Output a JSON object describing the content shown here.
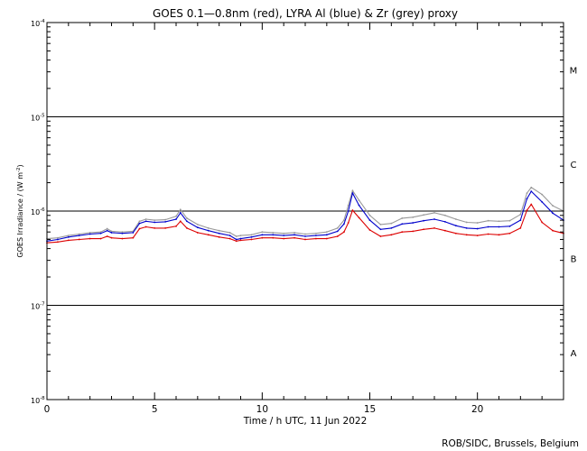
{
  "chart_data": {
    "type": "line",
    "title": "GOES 0.1—0.8nm (red), LYRA Al (blue) & Zr (grey) proxy",
    "xlabel": "Time / h UTC, 11 Jun 2022",
    "ylabel_main": "GOES Irradiance / (W m",
    "ylabel_exp": "-2",
    "ylabel_close": ")",
    "xlim": [
      0,
      24
    ],
    "ylim_log10": [
      -8,
      -4
    ],
    "y_scale": "log",
    "xticks": [
      {
        "value": 0,
        "label": "0"
      },
      {
        "value": 5,
        "label": "5"
      },
      {
        "value": 10,
        "label": "10"
      },
      {
        "value": 15,
        "label": "15"
      },
      {
        "value": 20,
        "label": "20"
      }
    ],
    "yticks": [
      {
        "exp": -4,
        "base": "10",
        "sup": "-4"
      },
      {
        "exp": -5,
        "base": "10",
        "sup": "-5"
      },
      {
        "exp": -6,
        "base": "10",
        "sup": "-6"
      },
      {
        "exp": -7,
        "base": "10",
        "sup": "-7"
      },
      {
        "exp": -8,
        "base": "10",
        "sup": "-8"
      }
    ],
    "class_lines_log10": [
      -5,
      -6,
      -7
    ],
    "flare_classes": [
      {
        "label": "M",
        "log_center": -4.5
      },
      {
        "label": "C",
        "log_center": -5.5
      },
      {
        "label": "B",
        "log_center": -6.5
      },
      {
        "label": "A",
        "log_center": -7.5
      }
    ],
    "series": [
      {
        "name": "LYRA Zr proxy",
        "color": "#999999",
        "x": [
          0,
          0.5,
          1,
          1.5,
          2,
          2.5,
          2.8,
          3,
          3.5,
          4,
          4.3,
          4.6,
          5,
          5.5,
          6,
          6.2,
          6.5,
          7,
          7.5,
          8,
          8.5,
          8.8,
          9,
          9.5,
          10,
          10.5,
          11,
          11.5,
          12,
          12.5,
          13,
          13.5,
          13.8,
          14,
          14.2,
          14.5,
          15,
          15.5,
          16,
          16.5,
          17,
          17.5,
          18,
          18.5,
          19,
          19.5,
          20,
          20.5,
          21,
          21.5,
          22,
          22.3,
          22.5,
          23,
          23.5,
          24
        ],
        "values": [
          5.1e-07,
          5.2e-07,
          5.5e-07,
          5.7e-07,
          5.9e-07,
          6e-07,
          6.5e-07,
          6.1e-07,
          6e-07,
          6.1e-07,
          7.8e-07,
          8.2e-07,
          8e-07,
          8.1e-07,
          8.8e-07,
          1.04e-06,
          8.4e-07,
          7.2e-07,
          6.6e-07,
          6.2e-07,
          5.9e-07,
          5.4e-07,
          5.5e-07,
          5.6e-07,
          6e-07,
          5.9e-07,
          5.8e-07,
          5.9e-07,
          5.7e-07,
          5.8e-07,
          6e-07,
          6.6e-07,
          8e-07,
          1.15e-06,
          1.65e-06,
          1.3e-06,
          9e-07,
          7.2e-07,
          7.4e-07,
          8.4e-07,
          8.6e-07,
          9.1e-07,
          9.6e-07,
          9e-07,
          8.2e-07,
          7.6e-07,
          7.5e-07,
          7.9e-07,
          7.8e-07,
          7.9e-07,
          9.2e-07,
          1.55e-06,
          1.78e-06,
          1.5e-06,
          1.14e-06,
          1e-06
        ]
      },
      {
        "name": "LYRA Al proxy",
        "color": "#0000cc",
        "x": [
          0,
          0.5,
          1,
          1.5,
          2,
          2.5,
          2.8,
          3,
          3.5,
          4,
          4.3,
          4.6,
          5,
          5.5,
          6,
          6.2,
          6.5,
          7,
          7.5,
          8,
          8.5,
          8.8,
          9,
          9.5,
          10,
          10.5,
          11,
          11.5,
          12,
          12.5,
          13,
          13.5,
          13.8,
          14,
          14.2,
          14.5,
          15,
          15.5,
          16,
          16.5,
          17,
          17.5,
          18,
          18.5,
          19,
          19.5,
          20,
          20.5,
          21,
          21.5,
          22,
          22.3,
          22.5,
          23,
          23.5,
          24
        ],
        "values": [
          4.8e-07,
          5e-07,
          5.3e-07,
          5.5e-07,
          5.7e-07,
          5.8e-07,
          6.2e-07,
          5.9e-07,
          5.8e-07,
          5.9e-07,
          7.4e-07,
          7.8e-07,
          7.6e-07,
          7.7e-07,
          8.2e-07,
          9.6e-07,
          7.8e-07,
          6.7e-07,
          6.2e-07,
          5.8e-07,
          5.5e-07,
          5e-07,
          5.1e-07,
          5.3e-07,
          5.6e-07,
          5.6e-07,
          5.5e-07,
          5.6e-07,
          5.4e-07,
          5.5e-07,
          5.6e-07,
          6.1e-07,
          7.3e-07,
          1e-06,
          1.55e-06,
          1.15e-06,
          8e-07,
          6.4e-07,
          6.6e-07,
          7.3e-07,
          7.5e-07,
          7.9e-07,
          8.2e-07,
          7.7e-07,
          7e-07,
          6.6e-07,
          6.5e-07,
          6.8e-07,
          6.8e-07,
          6.9e-07,
          8e-07,
          1.35e-06,
          1.62e-06,
          1.25e-06,
          9.5e-07,
          8e-07
        ]
      },
      {
        "name": "GOES 0.1-0.8nm",
        "color": "#dd0000",
        "x": [
          0,
          0.5,
          1,
          1.5,
          2,
          2.5,
          2.8,
          3,
          3.5,
          4,
          4.3,
          4.6,
          5,
          5.5,
          6,
          6.2,
          6.5,
          7,
          7.5,
          8,
          8.5,
          8.8,
          9,
          9.5,
          10,
          10.5,
          11,
          11.5,
          12,
          12.5,
          13,
          13.5,
          13.8,
          14,
          14.2,
          14.5,
          15,
          15.5,
          16,
          16.5,
          17,
          17.5,
          18,
          18.5,
          19,
          19.5,
          20,
          20.5,
          21,
          21.5,
          22,
          22.3,
          22.5,
          23,
          23.5,
          24
        ],
        "values": [
          4.6e-07,
          4.7e-07,
          4.9e-07,
          5e-07,
          5.1e-07,
          5.1e-07,
          5.4e-07,
          5.2e-07,
          5.1e-07,
          5.2e-07,
          6.5e-07,
          6.8e-07,
          6.6e-07,
          6.6e-07,
          6.9e-07,
          7.8e-07,
          6.6e-07,
          5.9e-07,
          5.6e-07,
          5.3e-07,
          5.1e-07,
          4.8e-07,
          4.9e-07,
          5e-07,
          5.2e-07,
          5.2e-07,
          5.1e-07,
          5.2e-07,
          5e-07,
          5.1e-07,
          5.1e-07,
          5.4e-07,
          6e-07,
          7.5e-07,
          1.02e-06,
          8.5e-07,
          6.3e-07,
          5.4e-07,
          5.6e-07,
          6e-07,
          6.1e-07,
          6.4e-07,
          6.6e-07,
          6.2e-07,
          5.8e-07,
          5.6e-07,
          5.5e-07,
          5.7e-07,
          5.6e-07,
          5.8e-07,
          6.6e-07,
          1.02e-06,
          1.18e-06,
          7.6e-07,
          6.2e-07,
          5.8e-07
        ]
      }
    ]
  },
  "credit": "ROB/SIDC, Brussels, Belgium"
}
